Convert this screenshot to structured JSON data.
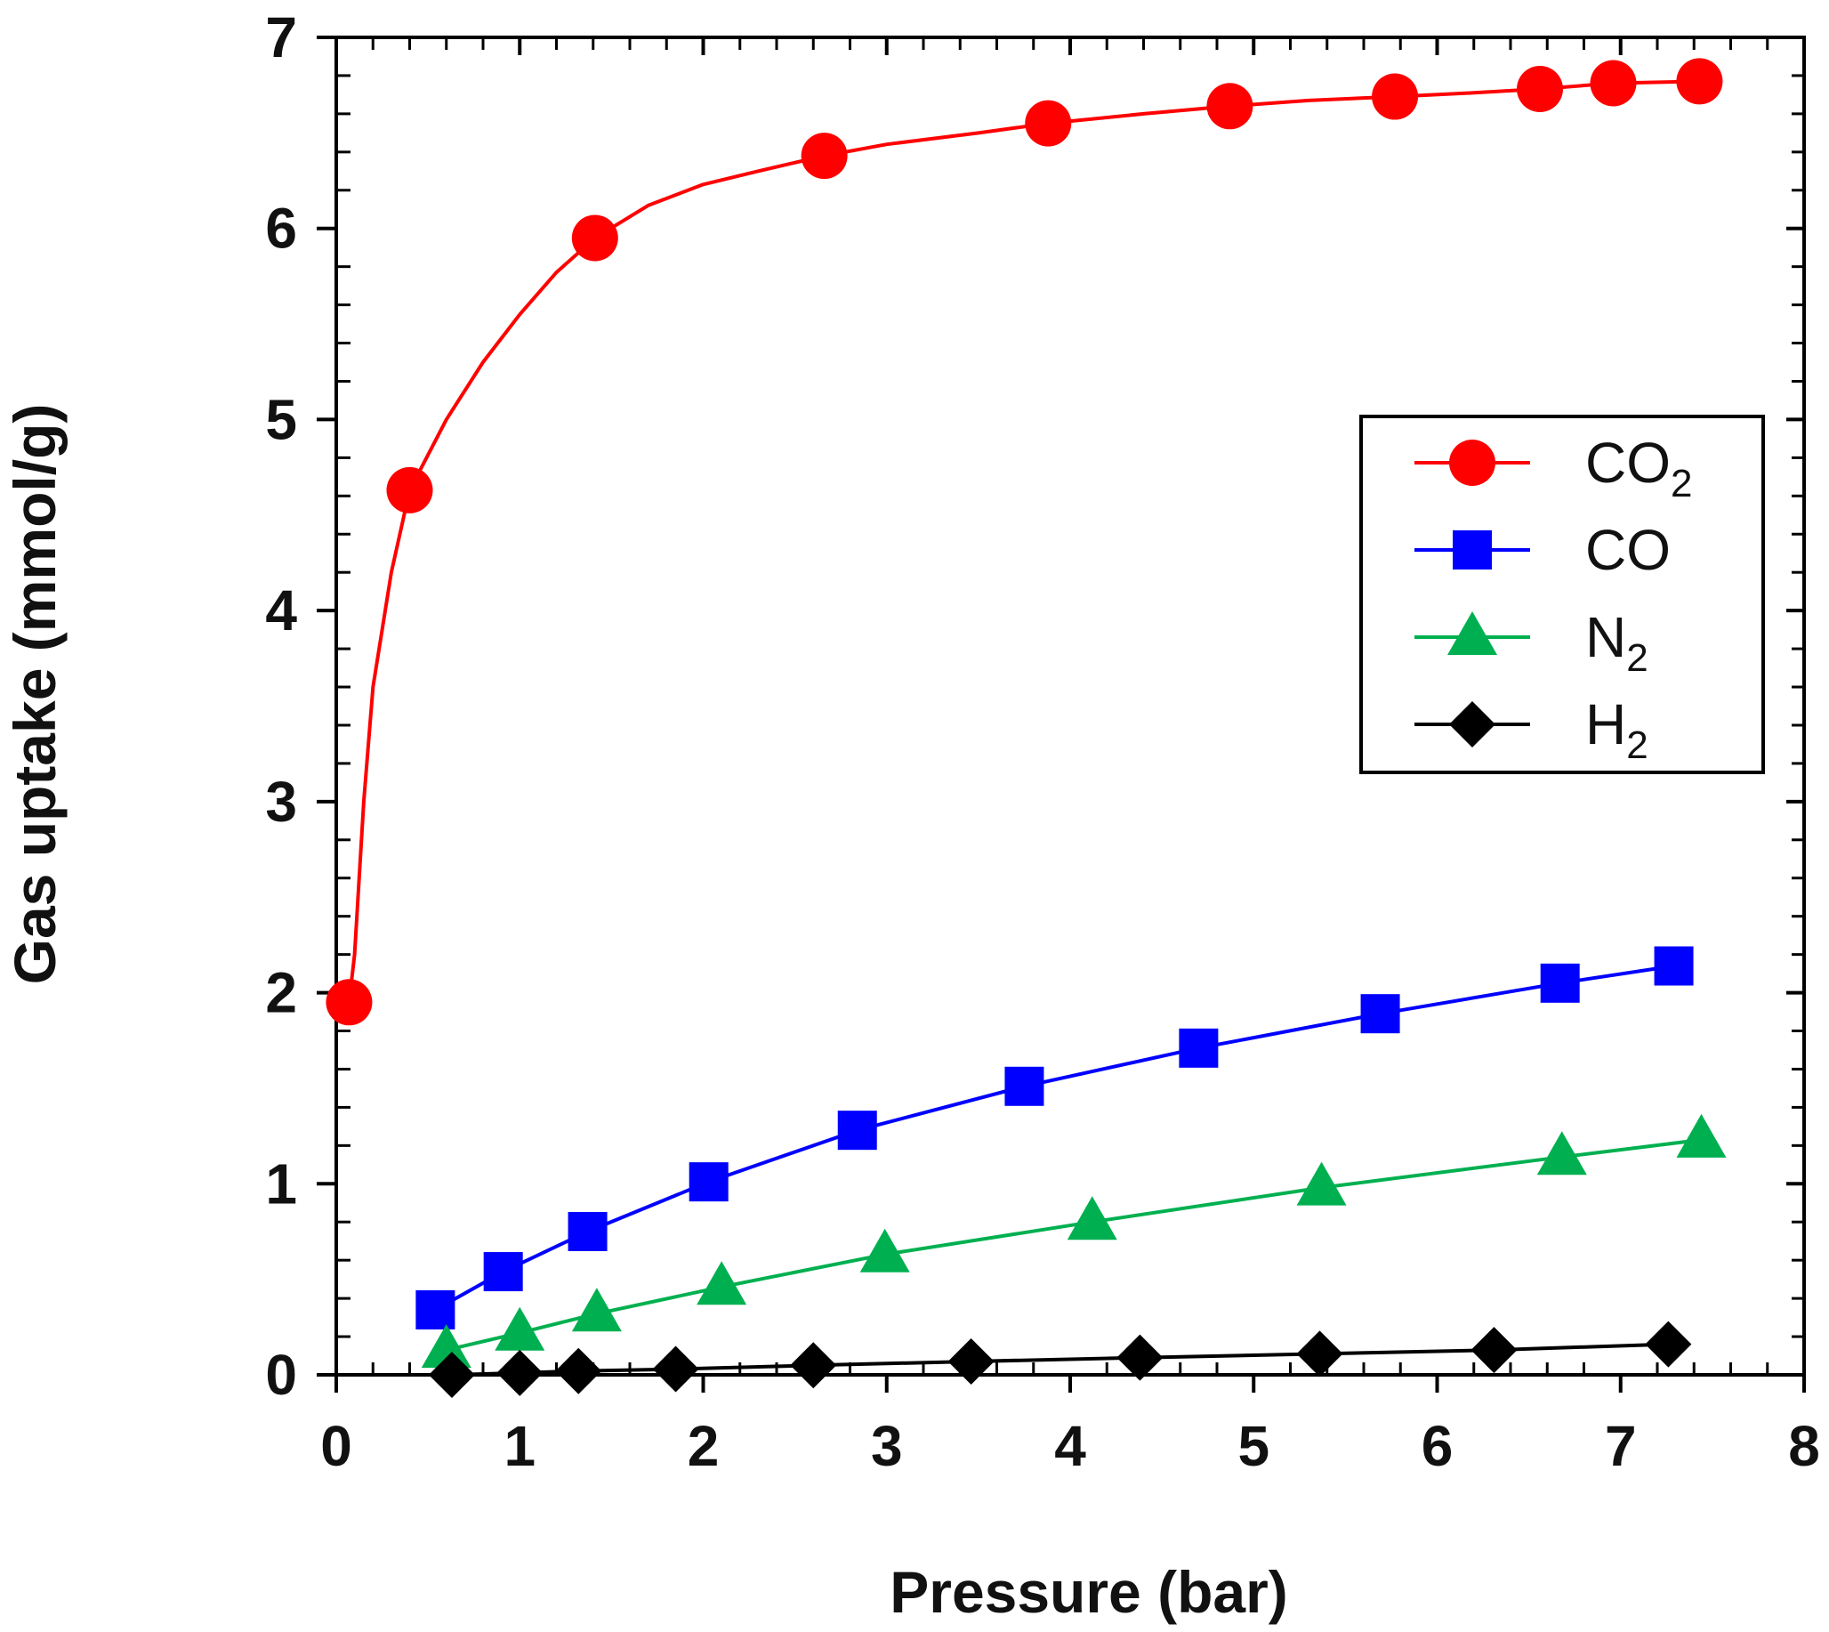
{
  "chart_data": {
    "type": "line",
    "title": "",
    "xlabel": "Pressure (bar)",
    "ylabel": "Gas uptake (mmol/g)",
    "xlim": [
      0,
      8
    ],
    "ylim": [
      0,
      7
    ],
    "xticks": [
      "0",
      "1",
      "2",
      "3",
      "4",
      "5",
      "6",
      "7",
      "8"
    ],
    "yticks": [
      "0",
      "1",
      "2",
      "3",
      "4",
      "5",
      "6",
      "7"
    ],
    "grid": false,
    "legend_position": "right",
    "series": [
      {
        "name": "CO2",
        "label_main": "CO",
        "label_sub": "2",
        "color": "#ff0000",
        "marker": "circle",
        "points": [
          [
            0.07,
            1.95
          ],
          [
            0.4,
            4.63
          ],
          [
            1.41,
            5.95
          ],
          [
            2.66,
            6.38
          ],
          [
            3.88,
            6.55
          ],
          [
            4.87,
            6.64
          ],
          [
            5.77,
            6.69
          ],
          [
            6.56,
            6.73
          ],
          [
            6.96,
            6.76
          ],
          [
            7.43,
            6.77
          ]
        ],
        "curve": [
          [
            0.07,
            1.95
          ],
          [
            0.1,
            2.2
          ],
          [
            0.15,
            3.0
          ],
          [
            0.2,
            3.6
          ],
          [
            0.3,
            4.2
          ],
          [
            0.4,
            4.63
          ],
          [
            0.6,
            5.0
          ],
          [
            0.8,
            5.3
          ],
          [
            1.0,
            5.55
          ],
          [
            1.2,
            5.77
          ],
          [
            1.41,
            5.95
          ],
          [
            1.7,
            6.12
          ],
          [
            2.0,
            6.23
          ],
          [
            2.3,
            6.3
          ],
          [
            2.66,
            6.38
          ],
          [
            3.0,
            6.44
          ],
          [
            3.5,
            6.5
          ],
          [
            3.88,
            6.55
          ],
          [
            4.4,
            6.6
          ],
          [
            4.87,
            6.64
          ],
          [
            5.3,
            6.67
          ],
          [
            5.77,
            6.69
          ],
          [
            6.2,
            6.71
          ],
          [
            6.56,
            6.73
          ],
          [
            6.96,
            6.76
          ],
          [
            7.43,
            6.77
          ]
        ]
      },
      {
        "name": "CO",
        "label_main": "CO",
        "label_sub": "",
        "color": "#0000ff",
        "marker": "square",
        "points": [
          [
            0.54,
            0.34
          ],
          [
            0.91,
            0.54
          ],
          [
            1.37,
            0.75
          ],
          [
            2.03,
            1.01
          ],
          [
            2.84,
            1.28
          ],
          [
            3.75,
            1.51
          ],
          [
            4.7,
            1.71
          ],
          [
            5.69,
            1.89
          ],
          [
            6.67,
            2.05
          ],
          [
            7.29,
            2.14
          ]
        ],
        "curve": [
          [
            0.54,
            0.34
          ],
          [
            0.91,
            0.54
          ],
          [
            1.37,
            0.75
          ],
          [
            2.03,
            1.01
          ],
          [
            2.84,
            1.28
          ],
          [
            3.75,
            1.51
          ],
          [
            4.7,
            1.71
          ],
          [
            5.69,
            1.89
          ],
          [
            6.67,
            2.05
          ],
          [
            7.29,
            2.14
          ]
        ]
      },
      {
        "name": "N2",
        "label_main": "N",
        "label_sub": "2",
        "color": "#00b050",
        "marker": "triangle",
        "points": [
          [
            0.6,
            0.13
          ],
          [
            1.0,
            0.22
          ],
          [
            1.42,
            0.32
          ],
          [
            2.1,
            0.46
          ],
          [
            2.99,
            0.63
          ],
          [
            4.12,
            0.8
          ],
          [
            5.37,
            0.98
          ],
          [
            6.68,
            1.14
          ],
          [
            7.44,
            1.23
          ]
        ],
        "curve": [
          [
            0.6,
            0.13
          ],
          [
            1.0,
            0.22
          ],
          [
            1.42,
            0.32
          ],
          [
            2.1,
            0.46
          ],
          [
            2.99,
            0.63
          ],
          [
            4.12,
            0.8
          ],
          [
            5.37,
            0.98
          ],
          [
            6.68,
            1.14
          ],
          [
            7.44,
            1.23
          ]
        ]
      },
      {
        "name": "H2",
        "label_main": "H",
        "label_sub": "2",
        "color": "#000000",
        "marker": "diamond",
        "points": [
          [
            0.63,
            0.0
          ],
          [
            1.0,
            0.01
          ],
          [
            1.32,
            0.02
          ],
          [
            1.85,
            0.03
          ],
          [
            2.6,
            0.05
          ],
          [
            3.46,
            0.07
          ],
          [
            4.38,
            0.09
          ],
          [
            5.36,
            0.11
          ],
          [
            6.31,
            0.13
          ],
          [
            7.26,
            0.16
          ]
        ],
        "curve": [
          [
            0.63,
            0.0
          ],
          [
            1.0,
            0.01
          ],
          [
            1.32,
            0.02
          ],
          [
            1.85,
            0.03
          ],
          [
            2.6,
            0.05
          ],
          [
            3.46,
            0.07
          ],
          [
            4.38,
            0.09
          ],
          [
            5.36,
            0.11
          ],
          [
            6.31,
            0.13
          ],
          [
            7.26,
            0.16
          ]
        ]
      }
    ]
  }
}
